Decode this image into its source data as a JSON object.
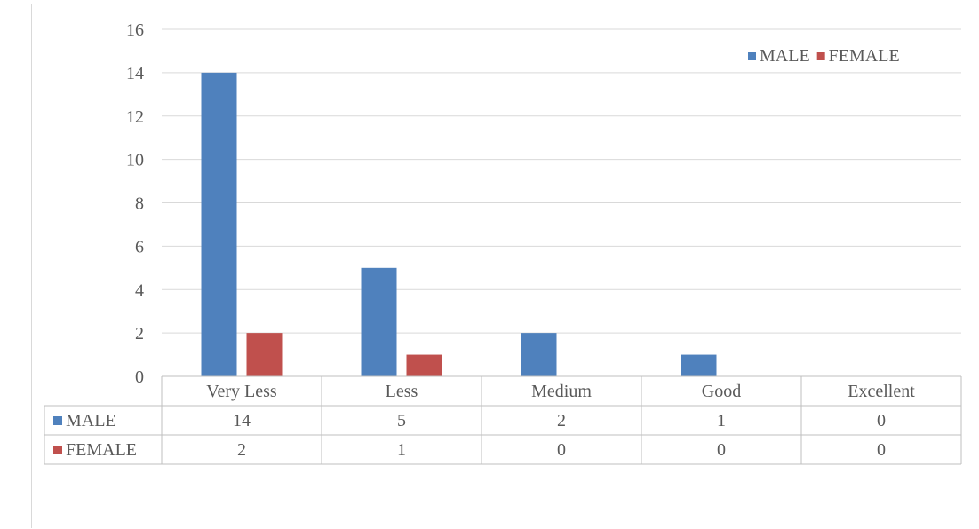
{
  "chart_data": {
    "type": "bar",
    "title": "",
    "xlabel": "",
    "ylabel": "",
    "categories": [
      "Very Less",
      "Less",
      "Medium",
      "Good",
      "Excellent"
    ],
    "series": [
      {
        "name": "MALE",
        "values": [
          14,
          5,
          2,
          1,
          0
        ],
        "color": "#4f81bd"
      },
      {
        "name": "FEMALE",
        "values": [
          2,
          1,
          0,
          0,
          0
        ],
        "color": "#c0504d"
      }
    ],
    "ylim": [
      0,
      16
    ],
    "yticks": [
      "0",
      "2",
      "4",
      "6",
      "8",
      "10",
      "12",
      "14",
      "16"
    ],
    "grid": true,
    "legend": "top-right",
    "data_table": true
  }
}
